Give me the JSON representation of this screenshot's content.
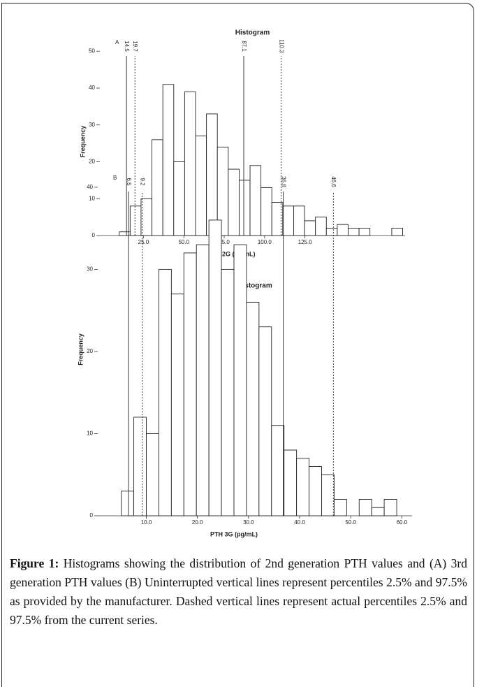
{
  "chart_data": [
    {
      "type": "histogram",
      "panel": "A",
      "title": "Histogram",
      "xlabel": "PTH 2G (pg/mL)",
      "ylabel": "Frequency",
      "bins": [
        10,
        16.75,
        23.5,
        30.25,
        37,
        43.75,
        50.5,
        57.25,
        64,
        70.75,
        77.5,
        84.25,
        91,
        97.75,
        104.5,
        111.25,
        118,
        124.75,
        131.5,
        138.25,
        145,
        151.75,
        158.5,
        165.25,
        172,
        178.75,
        185.5
      ],
      "values": [
        1,
        8,
        10,
        26,
        41,
        20,
        39,
        27,
        33,
        24,
        18,
        15,
        19,
        13,
        9,
        8,
        8,
        4,
        5,
        2,
        3,
        2,
        2,
        0,
        0,
        2
      ],
      "color": "#ffffff",
      "xlim": [
        -2,
        187
      ],
      "xticks": [
        {
          "value": 25,
          "label": "25.0"
        },
        {
          "value": 50,
          "label": "50.0"
        },
        {
          "value": 75,
          "label": "75.0"
        },
        {
          "value": 100,
          "label": "100.0"
        },
        {
          "value": 125,
          "label": "125.0"
        }
      ],
      "ylim": [
        0,
        51
      ],
      "yticks": [
        0,
        10,
        20,
        30,
        40,
        50
      ],
      "ref_lines": [
        {
          "value": 14.5,
          "style": "solid"
        },
        {
          "value": 19.7,
          "style": "dashed"
        },
        {
          "value": 87.1,
          "style": "solid"
        },
        {
          "value": 110.3,
          "style": "dashed"
        }
      ]
    },
    {
      "type": "histogram",
      "panel": "B",
      "title": "Histogram",
      "xlabel": "PTH 3G (pg/mL)",
      "ylabel": "Frequency",
      "bins": [
        5.1,
        7.55,
        10.0,
        12.45,
        14.9,
        17.35,
        19.8,
        22.25,
        24.7,
        27.15,
        29.6,
        32.05,
        34.5,
        36.95,
        39.4,
        41.85,
        44.3,
        46.75,
        49.2,
        51.65,
        54.1,
        56.55,
        59.0
      ],
      "values": [
        3,
        12,
        10,
        30,
        27,
        32,
        33,
        36,
        30,
        33,
        26,
        23,
        11,
        8,
        7,
        6,
        5,
        2,
        0,
        2,
        1,
        2
      ],
      "color": "#ffffff",
      "xlim": [
        0.5,
        62
      ],
      "xticks": [
        {
          "value": 10,
          "label": "10.0"
        },
        {
          "value": 20,
          "label": "20.0"
        },
        {
          "value": 30,
          "label": "30.0"
        },
        {
          "value": 40,
          "label": "40.0"
        },
        {
          "value": 50,
          "label": "50.0"
        },
        {
          "value": 60,
          "label": "60.0"
        }
      ],
      "ylim": [
        0,
        40.5
      ],
      "yticks": [
        0,
        10,
        20,
        30,
        40
      ],
      "ref_lines": [
        {
          "value": 6.5,
          "style": "solid"
        },
        {
          "value": 9.2,
          "style": "dashed"
        },
        {
          "value": 36.8,
          "style": "solid"
        },
        {
          "value": 46.6,
          "style": "dashed"
        }
      ]
    }
  ],
  "caption_label": "Figure 1:",
  "caption": "Histograms showing the distribution of 2nd generation PTH values and (A) 3rd generation PTH values (B) Uninterrupted vertical lines represent percentiles 2.5% and 97.5% as provided by the manufacturer. Dashed vertical lines represent actual percentiles 2.5% and 97.5% from the current series."
}
